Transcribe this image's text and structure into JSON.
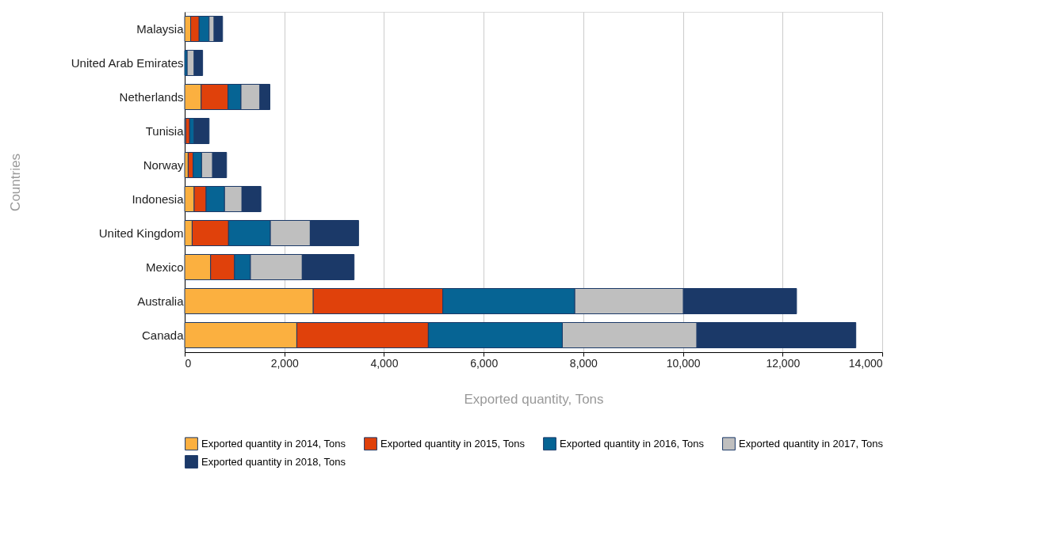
{
  "chart_data": {
    "type": "bar",
    "orientation": "horizontal",
    "stacked": true,
    "categories": [
      "Malaysia",
      "United Arab Emirates",
      "Netherlands",
      "Tunisia",
      "Norway",
      "Indonesia",
      "United Kingdom",
      "Mexico",
      "Australia",
      "Canada"
    ],
    "series": [
      {
        "name": "Exported quantity in 2014, Tons",
        "color": "#fbb040",
        "values": [
          120,
          null,
          330,
          20,
          70,
          190,
          150,
          520,
          2580,
          2250
        ]
      },
      {
        "name": "Exported quantity in 2015, Tons",
        "color": "#e0410b",
        "values": [
          170,
          null,
          540,
          80,
          100,
          240,
          730,
          480,
          2600,
          2640
        ]
      },
      {
        "name": "Exported quantity in 2016, Tons",
        "color": "#066494",
        "values": [
          200,
          50,
          260,
          90,
          170,
          370,
          840,
          320,
          2650,
          2690
        ]
      },
      {
        "name": "Exported quantity in 2017, Tons",
        "color": "#bfbfbf",
        "values": [
          100,
          140,
          380,
          null,
          220,
          350,
          800,
          1040,
          2180,
          2700
        ]
      },
      {
        "name": "Exported quantity in 2018, Tons",
        "color": "#1b3968",
        "values": [
          170,
          170,
          200,
          300,
          280,
          380,
          970,
          1040,
          2270,
          3190
        ]
      }
    ],
    "xlabel": "Exported quantity, Tons",
    "ylabel": "Countries",
    "xlim": [
      0,
      14000
    ],
    "xticks": [
      0,
      {
        "value": 2000,
        "label": "2,000"
      },
      {
        "value": 4000,
        "label": "4,000"
      },
      {
        "value": 6000,
        "label": "6,000"
      },
      {
        "value": 8000,
        "label": "8,000"
      },
      {
        "value": 10000,
        "label": "10,000"
      },
      {
        "value": 12000,
        "label": "12,000"
      },
      {
        "value": 14000,
        "label": "14,000"
      }
    ],
    "grid": "x",
    "legend": "bottom"
  }
}
